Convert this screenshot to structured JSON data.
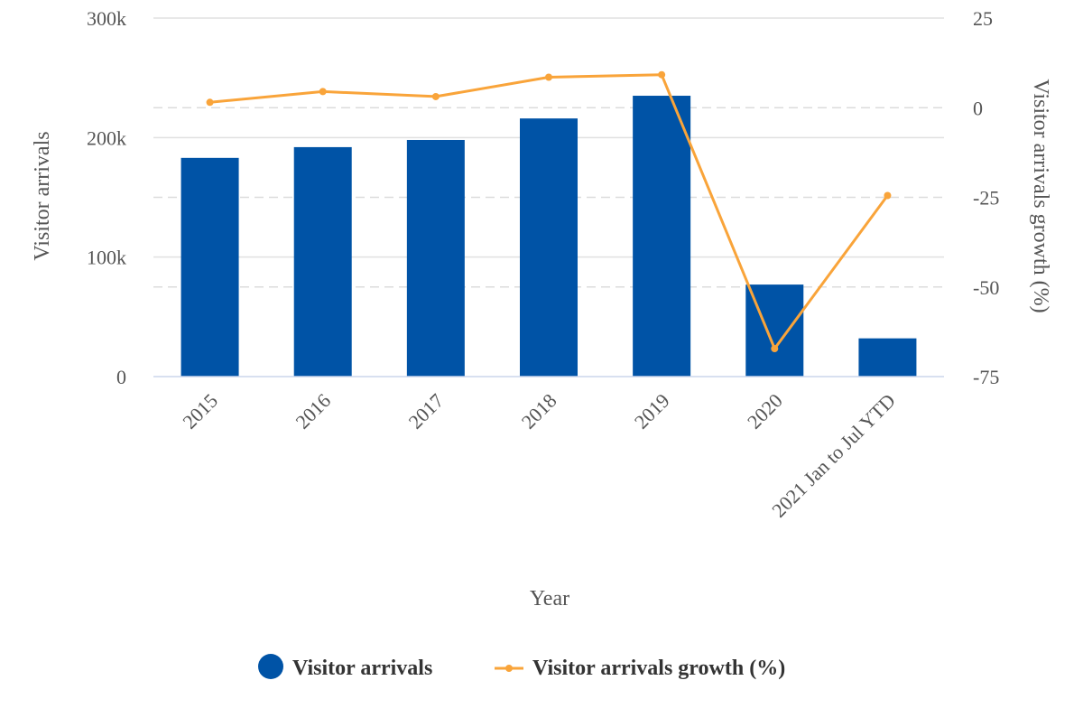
{
  "chart_data": {
    "type": "bar",
    "categories": [
      "2015",
      "2016",
      "2017",
      "2018",
      "2019",
      "2020",
      "2021 Jan to Jul YTD"
    ],
    "series": [
      {
        "name": "Visitor arrivals",
        "type": "bar",
        "axis": "left",
        "color": "#0053A6",
        "values": [
          183000,
          192000,
          198000,
          216000,
          235000,
          77000,
          32000
        ]
      },
      {
        "name": "Visitor arrivals growth (%)",
        "type": "line",
        "axis": "right",
        "color": "#F9A43A",
        "values": [
          1.5,
          4.5,
          3.1,
          8.5,
          9.2,
          -67.2,
          -24.5
        ]
      }
    ],
    "xlabel": "Year",
    "ylabel": "Visitor arrivals",
    "y2label": "Visitor arrivals growth (%)",
    "ylim": [
      0,
      300000
    ],
    "y2lim": [
      -75,
      25
    ],
    "yticks": [
      "0",
      "100k",
      "200k",
      "300k"
    ],
    "y2ticks": [
      "-75",
      "-50",
      "-25",
      "0",
      "25"
    ],
    "grid": true,
    "legend_position": "bottom"
  },
  "colors": {
    "bar": "#0053A6",
    "line": "#F9A43A"
  }
}
